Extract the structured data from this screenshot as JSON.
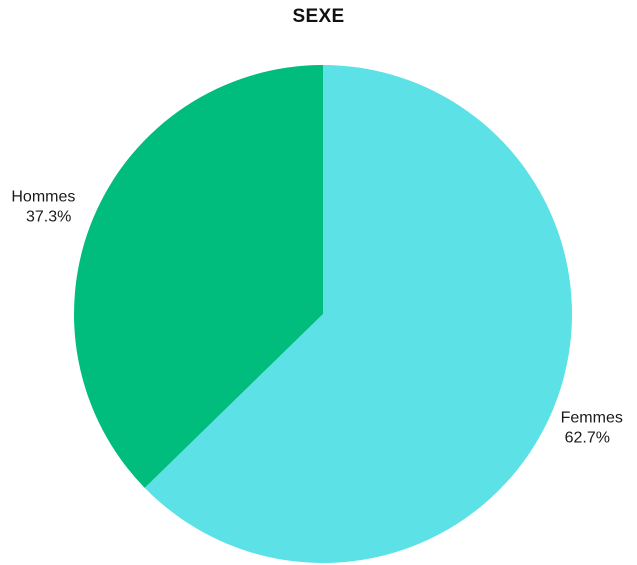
{
  "chart_data": {
    "type": "pie",
    "title": "SEXE",
    "slices": [
      {
        "label": "Femmes",
        "value": 62.7,
        "value_label": "62.7%",
        "color": "#5ce1e6"
      },
      {
        "label": "Hommes",
        "value": 37.3,
        "value_label": "37.3%",
        "color": "#00bd7e"
      }
    ],
    "start_angle": "12 o'clock",
    "direction": "clockwise",
    "legend": "none"
  }
}
